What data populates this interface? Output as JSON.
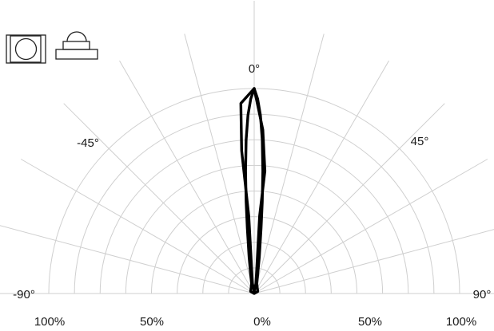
{
  "chart_data": {
    "type": "polar-line",
    "angle_labels": [
      "0°",
      "-45°",
      "45°",
      "-90°",
      "90°"
    ],
    "radial_tick_labels": [
      "100%",
      "50%",
      "0%",
      "50%",
      "100%"
    ],
    "radial_range": [
      0,
      100
    ],
    "angle_range": [
      -90,
      90
    ],
    "grid": true,
    "grid_ring_step": 12.5,
    "grid_ray_step_deg": 15,
    "series": [
      {
        "points": [
          {
            "angle": 0,
            "value": 100
          },
          {
            "angle": 1,
            "value": 95
          },
          {
            "angle": 2,
            "value": 87
          },
          {
            "angle": 3,
            "value": 75
          },
          {
            "angle": 4,
            "value": 60
          },
          {
            "angle": 5,
            "value": 45
          },
          {
            "angle": 6,
            "value": 32
          },
          {
            "angle": 8,
            "value": 18
          },
          {
            "angle": 10,
            "value": 10
          },
          {
            "angle": 15,
            "value": 5
          },
          {
            "angle": 30,
            "value": 3
          },
          {
            "angle": 60,
            "value": 2
          },
          {
            "angle": 60,
            "value": 0
          },
          {
            "angle": -60,
            "value": 0
          },
          {
            "angle": -60,
            "value": 2
          },
          {
            "angle": -30,
            "value": 3
          },
          {
            "angle": -15,
            "value": 5
          },
          {
            "angle": -10,
            "value": 10
          },
          {
            "angle": -8,
            "value": 18
          },
          {
            "angle": -6,
            "value": 32
          },
          {
            "angle": -5,
            "value": 45
          },
          {
            "angle": -4,
            "value": 60
          },
          {
            "angle": -3,
            "value": 75
          },
          {
            "angle": -2,
            "value": 87
          },
          {
            "angle": -1,
            "value": 95
          },
          {
            "angle": 0,
            "value": 100
          }
        ]
      },
      {
        "points": [
          {
            "angle": 0,
            "value": 100
          },
          {
            "angle": -4,
            "value": 93
          },
          {
            "angle": -5,
            "value": 70
          },
          {
            "angle": -4,
            "value": 38
          },
          {
            "angle": -10,
            "value": 5
          },
          {
            "angle": 0,
            "value": 1
          },
          {
            "angle": 10,
            "value": 5
          },
          {
            "angle": 4,
            "value": 38
          },
          {
            "angle": 5,
            "value": 60
          },
          {
            "angle": 3,
            "value": 80
          },
          {
            "angle": 0,
            "value": 100
          }
        ]
      }
    ]
  },
  "icons": [
    {
      "name": "led-top-view-icon",
      "color": "#222222"
    },
    {
      "name": "led-side-view-icon",
      "color": "#222222"
    }
  ]
}
